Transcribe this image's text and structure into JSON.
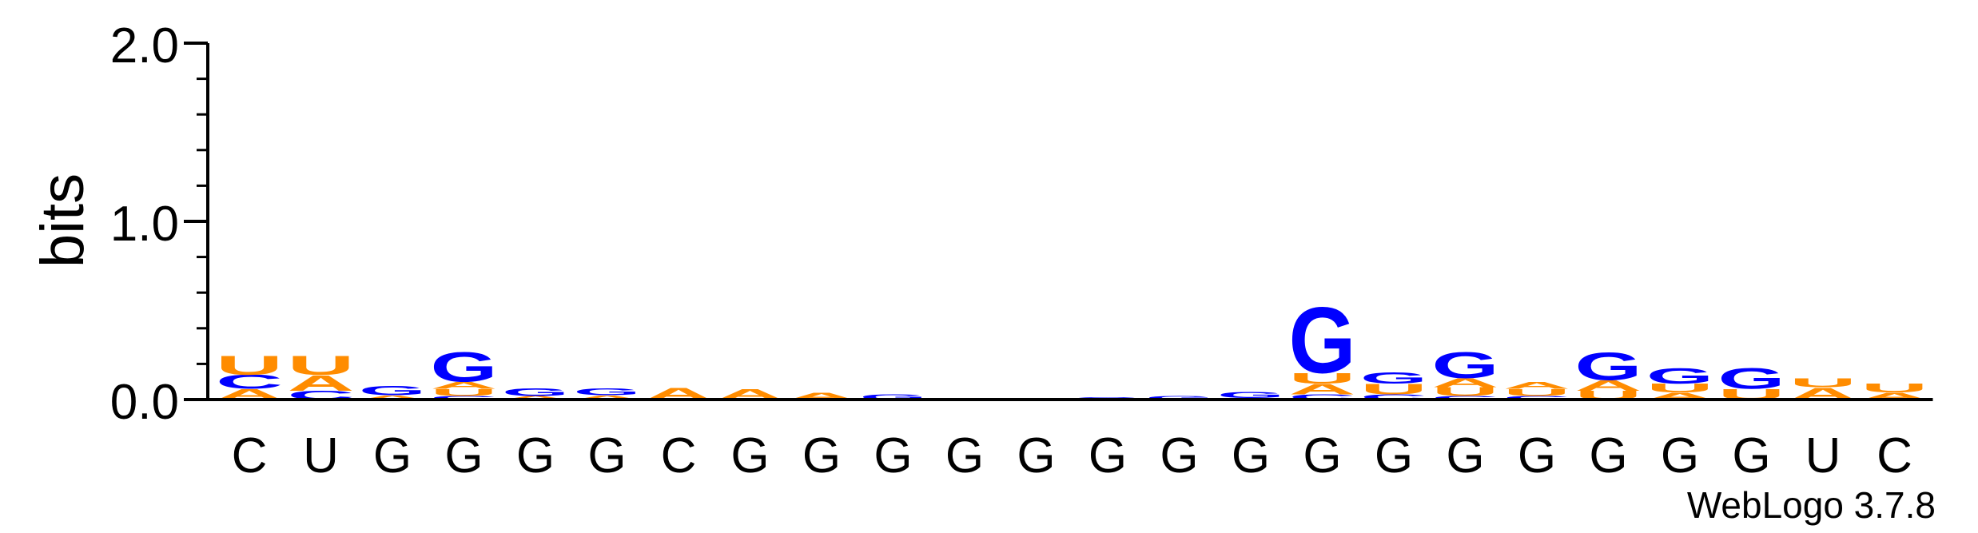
{
  "chart_data": {
    "type": "sequence-logo",
    "ylabel": "bits",
    "ylim": [
      0,
      2.0
    ],
    "yticks": [
      {
        "value": 0.0,
        "label": "0.0"
      },
      {
        "value": 1.0,
        "label": "1.0"
      },
      {
        "value": 2.0,
        "label": "2.0"
      }
    ],
    "minor_tick_step": 0.2,
    "colors": {
      "A": "#ff8c00",
      "U": "#ff8c00",
      "G": "#0000ff",
      "C": "#0000ff"
    },
    "positions": [
      {
        "label": "C",
        "stack": [
          {
            "base": "A",
            "h": 0.06
          },
          {
            "base": "C",
            "h": 0.08
          },
          {
            "base": "U",
            "h": 0.11
          }
        ]
      },
      {
        "label": "U",
        "stack": [
          {
            "base": "C",
            "h": 0.05
          },
          {
            "base": "A",
            "h": 0.09
          },
          {
            "base": "U",
            "h": 0.11
          }
        ]
      },
      {
        "label": "G",
        "stack": [
          {
            "base": "A",
            "h": 0.025
          },
          {
            "base": "G",
            "h": 0.055
          }
        ]
      },
      {
        "label": "G",
        "stack": [
          {
            "base": "C",
            "h": 0.02
          },
          {
            "base": "U",
            "h": 0.04
          },
          {
            "base": "A",
            "h": 0.04
          },
          {
            "base": "G",
            "h": 0.17
          }
        ]
      },
      {
        "label": "G",
        "stack": [
          {
            "base": "A",
            "h": 0.02
          },
          {
            "base": "G",
            "h": 0.045
          }
        ]
      },
      {
        "label": "G",
        "stack": [
          {
            "base": "A",
            "h": 0.025
          },
          {
            "base": "G",
            "h": 0.04
          }
        ]
      },
      {
        "label": "C",
        "stack": [
          {
            "base": "A",
            "h": 0.07
          }
        ]
      },
      {
        "label": "G",
        "stack": [
          {
            "base": "A",
            "h": 0.06
          }
        ]
      },
      {
        "label": "G",
        "stack": [
          {
            "base": "A",
            "h": 0.04
          }
        ]
      },
      {
        "label": "G",
        "stack": [
          {
            "base": "G",
            "h": 0.03
          }
        ]
      },
      {
        "label": "G",
        "stack": [
          {
            "base": "G",
            "h": 0.005
          }
        ]
      },
      {
        "label": "G",
        "stack": [
          {
            "base": "G",
            "h": 0.01
          }
        ]
      },
      {
        "label": "G",
        "stack": [
          {
            "base": "G",
            "h": 0.015
          }
        ]
      },
      {
        "label": "G",
        "stack": [
          {
            "base": "G",
            "h": 0.02
          }
        ]
      },
      {
        "label": "G",
        "stack": [
          {
            "base": "A",
            "h": 0.01
          },
          {
            "base": "G",
            "h": 0.035
          }
        ]
      },
      {
        "label": "G",
        "stack": [
          {
            "base": "C",
            "h": 0.03
          },
          {
            "base": "A",
            "h": 0.06
          },
          {
            "base": "U",
            "h": 0.06
          },
          {
            "base": "G",
            "h": 0.38
          }
        ]
      },
      {
        "label": "G",
        "stack": [
          {
            "base": "C",
            "h": 0.03
          },
          {
            "base": "U",
            "h": 0.06
          },
          {
            "base": "G",
            "h": 0.065
          }
        ]
      },
      {
        "label": "G",
        "stack": [
          {
            "base": "C",
            "h": 0.02
          },
          {
            "base": "U",
            "h": 0.05
          },
          {
            "base": "A",
            "h": 0.05
          },
          {
            "base": "G",
            "h": 0.15
          }
        ]
      },
      {
        "label": "G",
        "stack": [
          {
            "base": "C",
            "h": 0.02
          },
          {
            "base": "U",
            "h": 0.04
          },
          {
            "base": "A",
            "h": 0.04
          }
        ]
      },
      {
        "label": "G",
        "stack": [
          {
            "base": "U",
            "h": 0.05
          },
          {
            "base": "A",
            "h": 0.06
          },
          {
            "base": "G",
            "h": 0.16
          }
        ]
      },
      {
        "label": "G",
        "stack": [
          {
            "base": "A",
            "h": 0.04
          },
          {
            "base": "U",
            "h": 0.05
          },
          {
            "base": "G",
            "h": 0.09
          }
        ]
      },
      {
        "label": "G",
        "stack": [
          {
            "base": "U",
            "h": 0.06
          },
          {
            "base": "G",
            "h": 0.12
          }
        ]
      },
      {
        "label": "U",
        "stack": [
          {
            "base": "A",
            "h": 0.07
          },
          {
            "base": "U",
            "h": 0.05
          }
        ]
      },
      {
        "label": "C",
        "stack": [
          {
            "base": "A",
            "h": 0.04
          },
          {
            "base": "U",
            "h": 0.05
          }
        ]
      }
    ]
  },
  "footer": {
    "credit": "WebLogo 3.7.8"
  }
}
